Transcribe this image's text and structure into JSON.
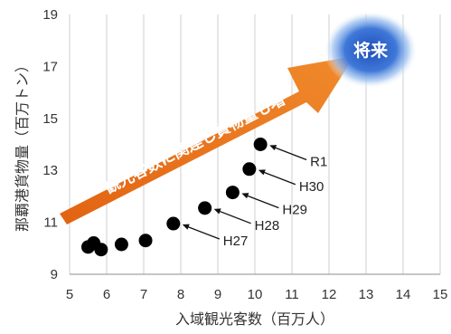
{
  "chart_data": {
    "type": "scatter",
    "title": "",
    "xlabel": "入域観光客数（百万人）",
    "ylabel": "那覇港貨物量（百万トン）",
    "xlim": [
      5,
      15
    ],
    "ylim": [
      9,
      19
    ],
    "xticks": [
      "5",
      "6",
      "7",
      "8",
      "9",
      "10",
      "11",
      "12",
      "13",
      "14",
      "15"
    ],
    "yticks": [
      "9",
      "11",
      "13",
      "15",
      "17",
      "19"
    ],
    "grid": "vertical",
    "marker_color": "#000000",
    "points": [
      {
        "x": 5.5,
        "y": 10.05
      },
      {
        "x": 5.65,
        "y": 10.2
      },
      {
        "x": 5.85,
        "y": 9.95
      },
      {
        "x": 6.4,
        "y": 10.15
      },
      {
        "x": 7.05,
        "y": 10.3
      },
      {
        "x": 7.8,
        "y": 10.95
      },
      {
        "x": 8.65,
        "y": 11.55
      },
      {
        "x": 9.4,
        "y": 12.15
      },
      {
        "x": 9.85,
        "y": 13.05
      },
      {
        "x": 10.15,
        "y": 14.0
      }
    ],
    "annotations": [
      {
        "label": "H27",
        "point_index": 5
      },
      {
        "label": "H28",
        "point_index": 6
      },
      {
        "label": "H29",
        "point_index": 7
      },
      {
        "label": "H30",
        "point_index": 8
      },
      {
        "label": "R1",
        "point_index": 9
      }
    ]
  },
  "callouts": {
    "trend_arrow_text": "観光客数に関連し貨物量も増",
    "future_label": "将来",
    "arrow_color": "#e8731c",
    "future_color": "#2f63c8"
  }
}
